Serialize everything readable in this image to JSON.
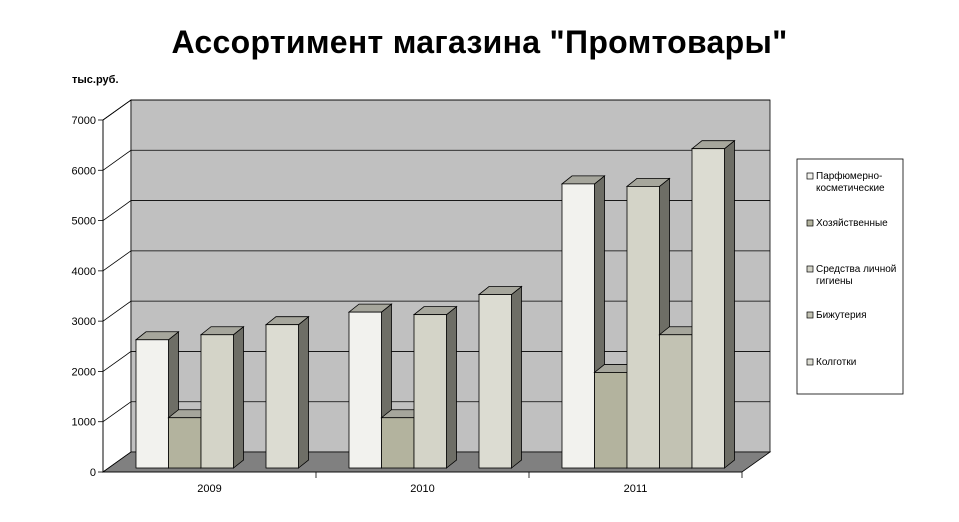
{
  "chart_data": {
    "type": "bar",
    "title": "Ассортимент магазина \"Промтовары\"",
    "ylabel": "тыс.руб.",
    "xlabel": "",
    "categories": [
      "2009",
      "2010",
      "2011"
    ],
    "ylim": [
      0,
      7000
    ],
    "yticks": [
      "0",
      "1000",
      "2000",
      "3000",
      "4000",
      "5000",
      "6000",
      "7000"
    ],
    "grid": true,
    "legend_position": "right",
    "series": [
      {
        "name": "Парфюмерно-косметические",
        "legend_lines": [
          "Парфюмерно-",
          "косметические"
        ],
        "values": [
          2550,
          3100,
          5650
        ],
        "color": "#f2f2ee"
      },
      {
        "name": "Хозяйственные",
        "legend_lines": [
          "Хозяйственные"
        ],
        "values": [
          1000,
          1000,
          1900
        ],
        "color": "#b3b39e"
      },
      {
        "name": "Средства личной гигиены",
        "legend_lines": [
          "Средства личной",
          "гигиены"
        ],
        "values": [
          2650,
          3050,
          5600
        ],
        "color": "#d4d4c8"
      },
      {
        "name": "Бижутерия",
        "legend_lines": [
          "Бижутерия"
        ],
        "values": [
          0,
          0,
          2650
        ],
        "color": "#c2c2b3"
      },
      {
        "name": "Колготки",
        "legend_lines": [
          "Колготки"
        ],
        "values": [
          2850,
          3450,
          6350
        ],
        "color": "#dcdcd2"
      }
    ]
  }
}
